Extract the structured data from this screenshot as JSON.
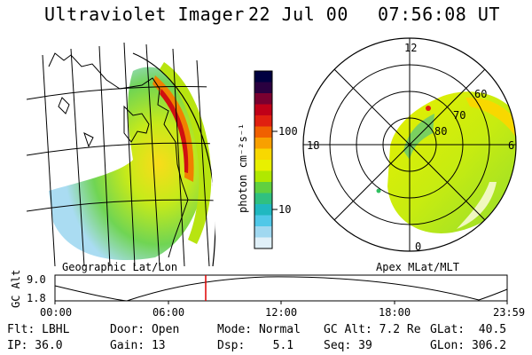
{
  "header": {
    "instrument": "Ultraviolet Imager",
    "date": "22 Jul 00",
    "time": "07:56:08 UT"
  },
  "map_left": {
    "caption": "Geographic Lat/Lon"
  },
  "map_right": {
    "caption": "Apex MLat/MLT",
    "mlt_labels": {
      "top": "12",
      "left": "18",
      "right": "6",
      "bottom": "0"
    },
    "lat_labels": [
      "60",
      "70",
      "80"
    ]
  },
  "colorbar": {
    "unit_label": "photon cm⁻²s⁻¹",
    "ticks": [
      "100",
      "10"
    ],
    "colors": [
      "#000040",
      "#2a0040",
      "#7a0030",
      "#c00018",
      "#e02010",
      "#f06000",
      "#f8a000",
      "#f8d800",
      "#e8f000",
      "#b0e800",
      "#60d040",
      "#30c080",
      "#20b8c0",
      "#50c8e8",
      "#a0d8f0",
      "#e0f0f8"
    ]
  },
  "altitude_plot": {
    "ylabel": "GC Alt",
    "yticks": [
      "9.0",
      "1.8"
    ],
    "xticks": [
      "00:00",
      "06:00",
      "12:00",
      "18:00",
      "23:59"
    ],
    "current_time_hours": 8.0,
    "marker_color": "#dd0000"
  },
  "info_rows": [
    [
      "Flt: LBHL",
      "Door: Open",
      "Mode: Normal",
      "GC Alt: 7.2 Re",
      "GLat:  40.5"
    ],
    [
      "IP: 36.0",
      "Gain: 13",
      "Dsp:    5.1",
      "Seq: 39",
      "GLon: 306.2"
    ]
  ]
}
